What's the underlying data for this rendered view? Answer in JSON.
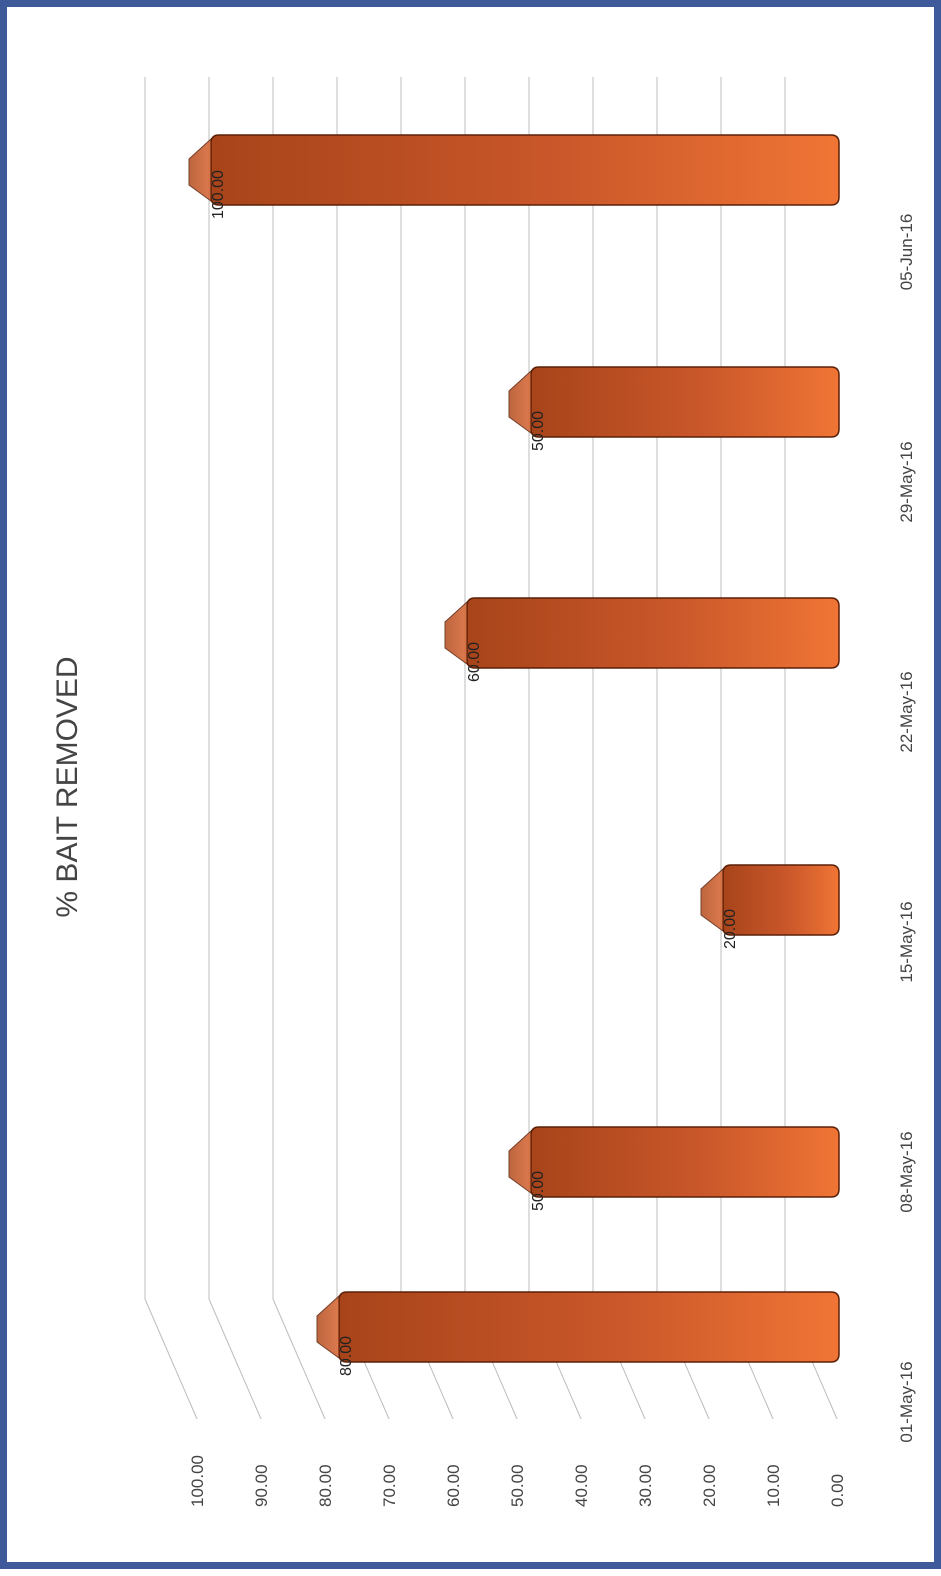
{
  "chart_data": {
    "type": "bar",
    "title": "% BAIT REMOVED",
    "categories": [
      "01-May-16",
      "08-May-16",
      "15-May-16",
      "22-May-16",
      "29-May-16",
      "05-Jun-16"
    ],
    "values": [
      80,
      50,
      20,
      60,
      50,
      100
    ],
    "value_labels": [
      "80.00",
      "50.00",
      "20.00",
      "60.00",
      "50.00",
      "100.00"
    ],
    "y_ticks": [
      "0.00",
      "10.00",
      "20.00",
      "30.00",
      "40.00",
      "50.00",
      "60.00",
      "70.00",
      "80.00",
      "90.00",
      "100.00"
    ],
    "ylim": [
      0,
      100
    ],
    "grid": true,
    "legend": "none",
    "orientation": "rotated-90-ccw",
    "style": "3d",
    "colors": {
      "bar": "#e2622a",
      "bar_dark": "#b54a1a",
      "border": "#3e5a9a",
      "grid": "#bcbcbc"
    }
  }
}
